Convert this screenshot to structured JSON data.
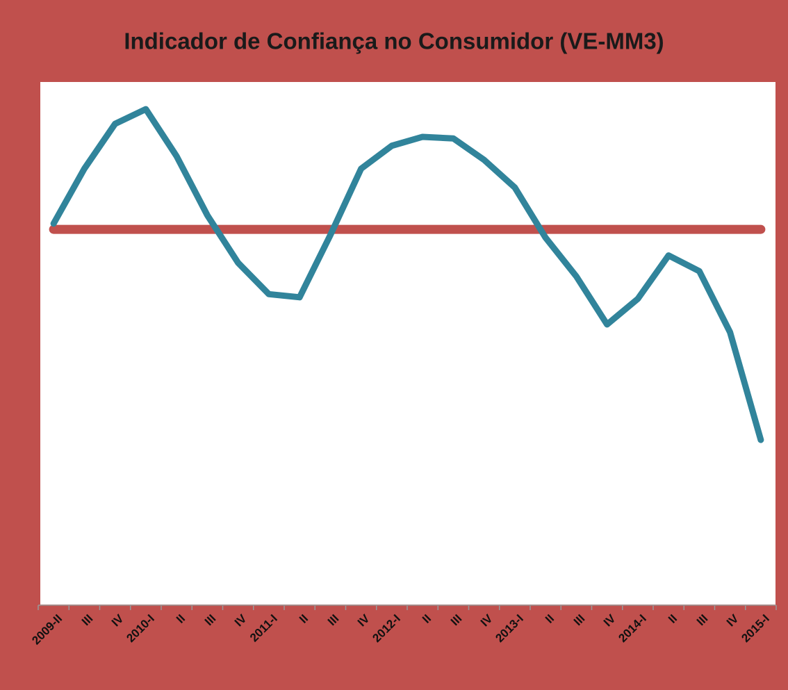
{
  "chart_data": {
    "type": "line",
    "title": "Indicador de Confiança no Consumidor (VE-MM3)",
    "categories": [
      "2009-II",
      "III",
      "IV",
      "2010-I",
      "II",
      "III",
      "IV",
      "2011-I",
      "II",
      "III",
      "IV",
      "2012-I",
      "II",
      "III",
      "IV",
      "2013-I",
      "II",
      "III",
      "IV",
      "2014-I",
      "II",
      "III",
      "IV",
      "2015-I"
    ],
    "series": [
      {
        "color": "#31849b",
        "values": [
          72.9,
          83.4,
          92.0,
          94.8,
          85.8,
          74.5,
          65.4,
          59.4,
          58.8,
          70.7,
          83.4,
          87.8,
          89.5,
          89.2,
          85.1,
          79.8,
          70.2,
          62.8,
          53.6,
          58.5,
          66.8,
          63.8,
          52.1,
          31.5
        ]
      },
      {
        "color": "#c0504d",
        "values": [
          71.8,
          71.8,
          71.8,
          71.8,
          71.8,
          71.8,
          71.8,
          71.8,
          71.8,
          71.8,
          71.8,
          71.8,
          71.8,
          71.8,
          71.8,
          71.8,
          71.8,
          71.8,
          71.8,
          71.8,
          71.8,
          71.8,
          71.8,
          71.8
        ]
      }
    ],
    "ylim": [
      0,
      100
    ]
  }
}
